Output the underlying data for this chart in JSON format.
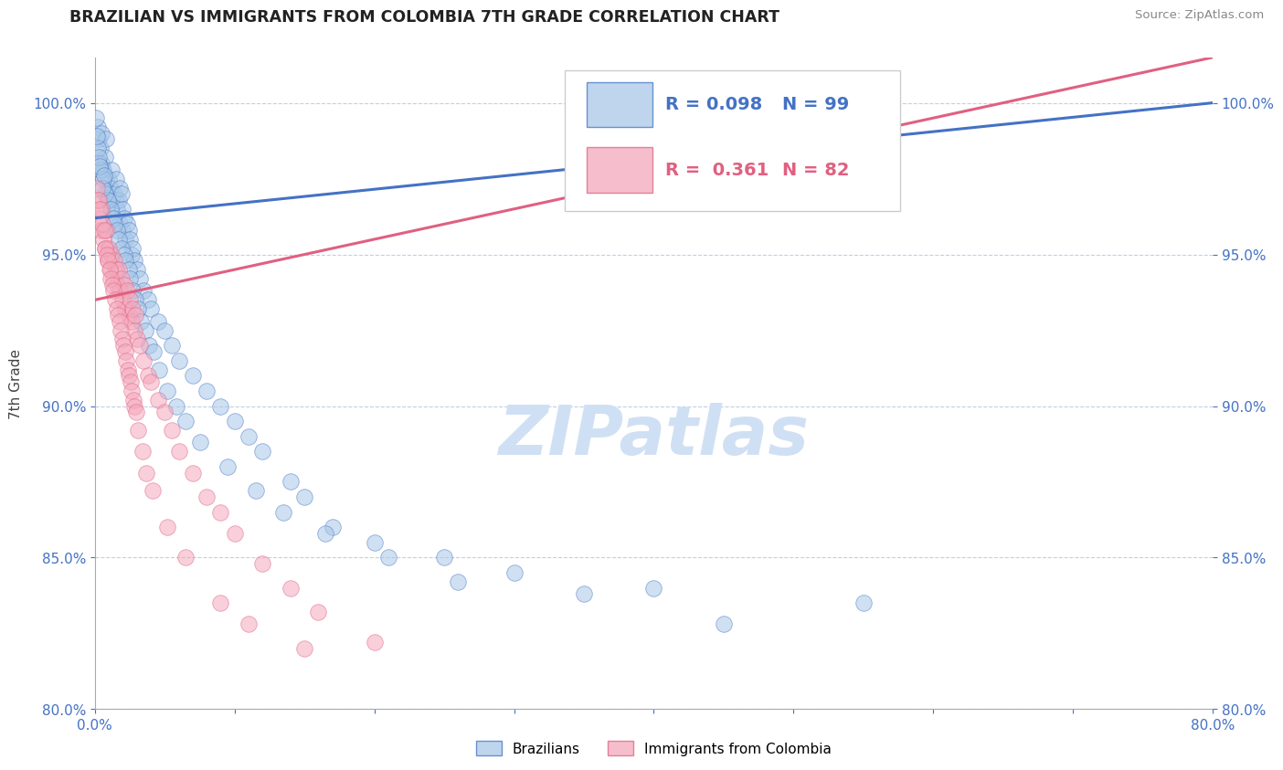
{
  "title": "BRAZILIAN VS IMMIGRANTS FROM COLOMBIA 7TH GRADE CORRELATION CHART",
  "source": "Source: ZipAtlas.com",
  "ylabel": "7th Grade",
  "yticks": [
    80.0,
    85.0,
    90.0,
    95.0,
    100.0
  ],
  "xmin": 0.0,
  "xmax": 80.0,
  "ymin": 80.0,
  "ymax": 101.5,
  "legend_r1": "0.098",
  "legend_n1": "99",
  "legend_r2": "0.361",
  "legend_n2": "82",
  "color_blue": "#a8c8e8",
  "color_pink": "#f4a8bc",
  "color_blue_line": "#4472c4",
  "color_pink_line": "#e06080",
  "color_text": "#4472c4",
  "watermark": "ZIPatlas",
  "watermark_color": "#d0e0f4",
  "blue_x": [
    0.2,
    0.3,
    0.4,
    0.5,
    0.5,
    0.6,
    0.7,
    0.8,
    0.8,
    0.9,
    1.0,
    1.0,
    1.1,
    1.2,
    1.2,
    1.3,
    1.4,
    1.5,
    1.5,
    1.6,
    1.7,
    1.8,
    1.8,
    1.9,
    2.0,
    2.0,
    2.1,
    2.2,
    2.3,
    2.4,
    2.5,
    2.6,
    2.7,
    2.8,
    3.0,
    3.2,
    3.5,
    3.8,
    4.0,
    4.5,
    5.0,
    5.5,
    6.0,
    7.0,
    8.0,
    9.0,
    10.0,
    11.0,
    12.0,
    14.0,
    15.0,
    17.0,
    20.0,
    25.0,
    30.0,
    40.0,
    55.0,
    0.1,
    0.2,
    0.3,
    0.4,
    0.6,
    0.7,
    0.9,
    1.1,
    1.3,
    1.4,
    1.6,
    1.7,
    1.9,
    2.1,
    2.2,
    2.4,
    2.5,
    2.7,
    2.9,
    3.1,
    3.3,
    3.6,
    3.9,
    4.2,
    4.6,
    5.2,
    5.8,
    6.5,
    7.5,
    9.5,
    11.5,
    13.5,
    16.5,
    21.0,
    26.0,
    35.0,
    45.0,
    0.15,
    0.25,
    0.35,
    0.55,
    0.65
  ],
  "blue_y": [
    99.2,
    98.8,
    98.5,
    99.0,
    98.0,
    97.8,
    98.2,
    97.5,
    98.8,
    97.0,
    97.5,
    96.8,
    97.2,
    96.5,
    97.8,
    96.2,
    97.0,
    96.8,
    97.5,
    96.5,
    96.8,
    97.2,
    96.0,
    97.0,
    96.5,
    95.8,
    96.2,
    95.5,
    96.0,
    95.8,
    95.5,
    95.0,
    95.2,
    94.8,
    94.5,
    94.2,
    93.8,
    93.5,
    93.2,
    92.8,
    92.5,
    92.0,
    91.5,
    91.0,
    90.5,
    90.0,
    89.5,
    89.0,
    88.5,
    87.5,
    87.0,
    86.0,
    85.5,
    85.0,
    84.5,
    84.0,
    83.5,
    99.5,
    98.5,
    98.0,
    97.8,
    97.5,
    97.0,
    96.8,
    96.5,
    96.2,
    96.0,
    95.8,
    95.5,
    95.2,
    95.0,
    94.8,
    94.5,
    94.2,
    93.8,
    93.5,
    93.2,
    92.8,
    92.5,
    92.0,
    91.8,
    91.2,
    90.5,
    90.0,
    89.5,
    88.8,
    88.0,
    87.2,
    86.5,
    85.8,
    85.0,
    84.2,
    83.8,
    82.8,
    98.9,
    98.2,
    97.9,
    97.2,
    97.6
  ],
  "pink_x": [
    0.2,
    0.3,
    0.4,
    0.5,
    0.6,
    0.7,
    0.8,
    0.9,
    1.0,
    1.1,
    1.2,
    1.3,
    1.4,
    1.5,
    1.6,
    1.7,
    1.8,
    1.9,
    2.0,
    2.1,
    2.2,
    2.3,
    2.4,
    2.5,
    2.6,
    2.7,
    2.8,
    2.9,
    3.0,
    3.2,
    3.5,
    3.8,
    4.0,
    4.5,
    5.0,
    5.5,
    6.0,
    7.0,
    8.0,
    9.0,
    10.0,
    12.0,
    14.0,
    16.0,
    20.0,
    0.15,
    0.25,
    0.35,
    0.55,
    0.65,
    0.75,
    0.85,
    0.95,
    1.05,
    1.15,
    1.25,
    1.35,
    1.45,
    1.55,
    1.65,
    1.75,
    1.85,
    1.95,
    2.05,
    2.15,
    2.25,
    2.35,
    2.45,
    2.55,
    2.65,
    2.75,
    2.85,
    2.95,
    3.1,
    3.4,
    3.7,
    4.1,
    5.2,
    6.5,
    9.0,
    11.0,
    15.0
  ],
  "pink_y": [
    96.8,
    96.2,
    95.8,
    96.5,
    95.5,
    95.2,
    95.8,
    94.8,
    95.2,
    94.5,
    95.0,
    94.2,
    94.8,
    94.5,
    94.0,
    94.5,
    93.8,
    94.2,
    93.5,
    94.0,
    93.2,
    93.8,
    93.0,
    93.5,
    92.8,
    93.2,
    92.5,
    93.0,
    92.2,
    92.0,
    91.5,
    91.0,
    90.8,
    90.2,
    89.8,
    89.2,
    88.5,
    87.8,
    87.0,
    86.5,
    85.8,
    84.8,
    84.0,
    83.2,
    82.2,
    97.2,
    96.8,
    96.5,
    96.0,
    95.8,
    95.2,
    95.0,
    94.8,
    94.5,
    94.2,
    94.0,
    93.8,
    93.5,
    93.2,
    93.0,
    92.8,
    92.5,
    92.2,
    92.0,
    91.8,
    91.5,
    91.2,
    91.0,
    90.8,
    90.5,
    90.2,
    90.0,
    89.8,
    89.2,
    88.5,
    87.8,
    87.2,
    86.0,
    85.0,
    83.5,
    82.8,
    82.0
  ],
  "blue_line_x0": 0.0,
  "blue_line_y0": 96.2,
  "blue_line_x1": 80.0,
  "blue_line_y1": 100.0,
  "pink_line_x0": 0.0,
  "pink_line_y0": 93.5,
  "pink_line_x1": 80.0,
  "pink_line_y1": 101.5
}
